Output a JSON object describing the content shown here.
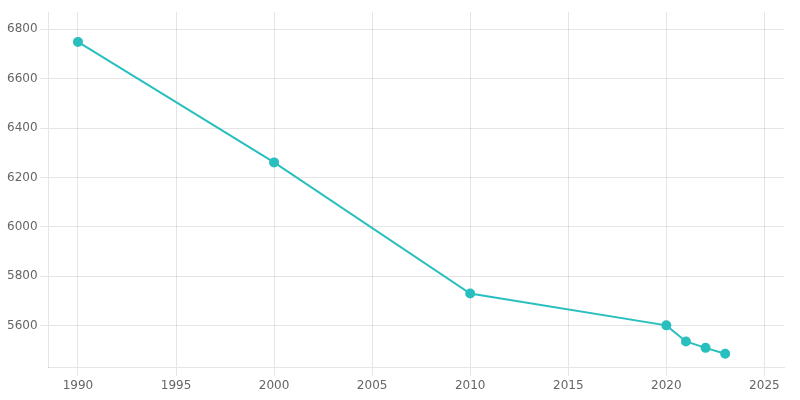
{
  "chart_data": {
    "type": "line",
    "x": [
      1990,
      2000,
      2010,
      2020,
      2021,
      2022,
      2023
    ],
    "values": [
      6749,
      6261,
      5730,
      5601,
      5536,
      5510,
      5486
    ],
    "color": "#2abfbf",
    "marker": "circle",
    "xlim": [
      1988.5,
      2026
    ],
    "ylim": [
      5430,
      6870
    ],
    "xticks": [
      1990,
      1995,
      2000,
      2005,
      2010,
      2015,
      2020,
      2025
    ],
    "yticks": [
      5600,
      5800,
      6000,
      6200,
      6400,
      6600,
      6800
    ],
    "grid": true
  }
}
